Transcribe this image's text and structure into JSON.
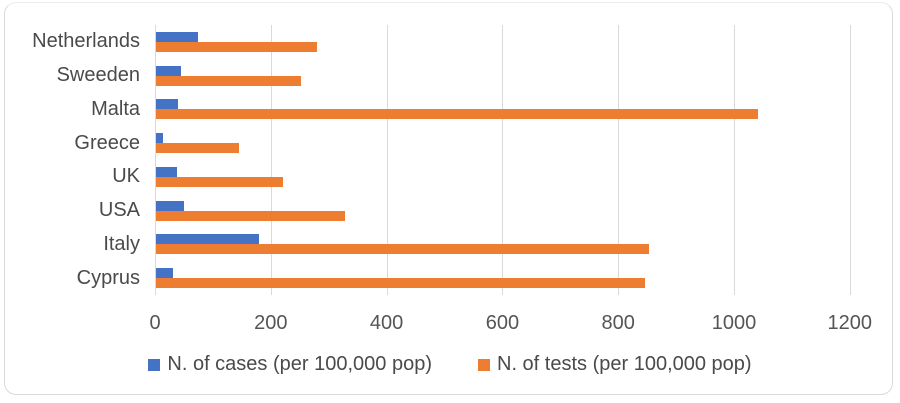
{
  "chart_data": {
    "type": "bar",
    "orientation": "horizontal",
    "title": "",
    "categories": [
      "Netherlands",
      "Sweeden",
      "Malta",
      "Greece",
      "UK",
      "USA",
      "Italy",
      "Cyprus"
    ],
    "series": [
      {
        "name": "N. of cases (per 100,000 pop)",
        "color": "#4472C4",
        "values": [
          72,
          44,
          38,
          12,
          37,
          49,
          178,
          29
        ]
      },
      {
        "name": "N. of tests (per 100,000 pop)",
        "color": "#ED7D31",
        "values": [
          278,
          250,
          1040,
          143,
          220,
          327,
          852,
          845
        ]
      }
    ],
    "xlim": [
      0,
      1200
    ],
    "xticks": [
      0,
      200,
      400,
      600,
      800,
      1000,
      1200
    ],
    "grid": "vertical",
    "legend_position": "bottom",
    "style": {
      "grid_color": "#d9d9d9",
      "axis_text_color": "#555555",
      "category_text_color": "#4a4a4a",
      "background": "#ffffff",
      "border_color": "#d9d9d9"
    }
  }
}
